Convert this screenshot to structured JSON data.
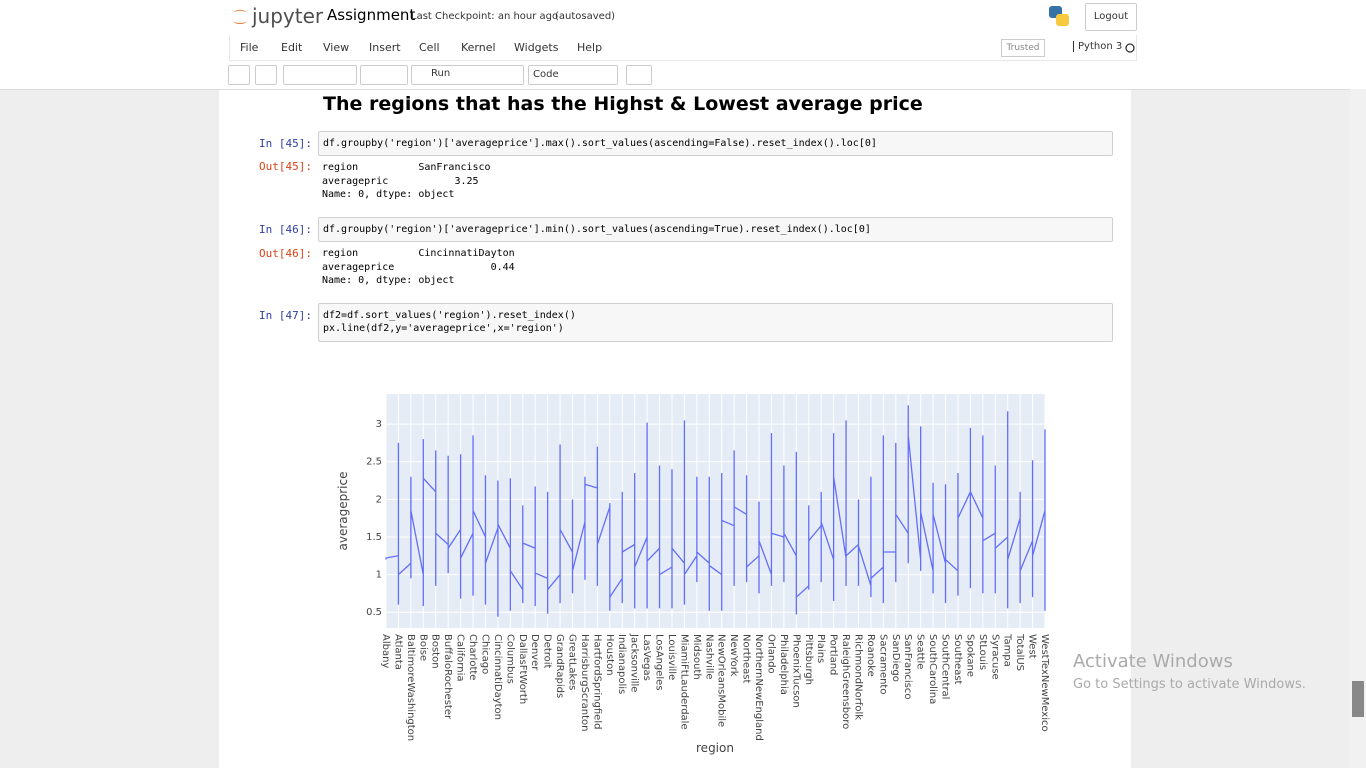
{
  "header": {
    "logo": "jupyter",
    "notebook_name": "Assignment",
    "checkpoint": "Last Checkpoint: an hour ago",
    "autosave": "(autosaved)",
    "logout": "Logout"
  },
  "menu": {
    "items": [
      "File",
      "Edit",
      "View",
      "Insert",
      "Cell",
      "Kernel",
      "Widgets",
      "Help"
    ],
    "trusted": "Trusted",
    "kernel": "Python 3"
  },
  "toolbar": {
    "run": "Run",
    "cell_type": "Code"
  },
  "notebook": {
    "heading": "The regions that has the Highst & Lowest average price",
    "cells": [
      {
        "prompt": "In [45]:",
        "code": "df.groupby('region')['averageprice'].max().sort_values(ascending=False).reset_index().loc[0]",
        "out_prompt": "Out[45]:",
        "output": "region          SanFrancisco\naveragepric           3.25\nName: 0, dtype: object"
      },
      {
        "prompt": "In [46]:",
        "code": "df.groupby('region')['averageprice'].min().sort_values(ascending=True).reset_index().loc[0]",
        "out_prompt": "Out[46]:",
        "output": "region          CincinnatiDayton\naverageprice                0.44\nName: 0, dtype: object"
      },
      {
        "prompt": "In [47]:",
        "code": "df2=df.sort_values('region').reset_index()\npx.line(df2,y='averageprice',x='region')"
      }
    ]
  },
  "chart_data": {
    "type": "line",
    "x_label": "region",
    "y_label": "averageprice",
    "categories": [
      "Albany",
      "Atlanta",
      "BaltimoreWashington",
      "Boise",
      "Boston",
      "BuffaloRochester",
      "California",
      "Charlotte",
      "Chicago",
      "CincinnatiDayton",
      "Columbus",
      "DallasFtWorth",
      "Denver",
      "Detroit",
      "GrandRapids",
      "GreatLakes",
      "HarrisburgScranton",
      "HartfordSpringfield",
      "Houston",
      "Indianapolis",
      "Jacksonville",
      "LasVegas",
      "LosAngeles",
      "Louisville",
      "MiamiFtLauderdale",
      "Midsouth",
      "Nashville",
      "NewOrleansMobile",
      "NewYork",
      "Northeast",
      "NorthernNewEngland",
      "Orlando",
      "Philadelphia",
      "PhoenixTucson",
      "Pittsburgh",
      "Plains",
      "Portland",
      "RaleighGreensboro",
      "RichmondNorfolk",
      "Roanoke",
      "Sacramento",
      "SanDiego",
      "SanFrancisco",
      "Seattle",
      "SouthCarolina",
      "SouthCentral",
      "Southeast",
      "Spokane",
      "StLouis",
      "Syracuse",
      "Tampa",
      "TotalUS",
      "West",
      "WestTexNewMexico"
    ],
    "series": [
      {
        "color": "#636efa",
        "values": [
          [
            1.2,
            1.22,
            1.2,
            1.22
          ],
          [
            1.25,
            2.75,
            0.6,
            1.0
          ],
          [
            1.15,
            2.3,
            0.95,
            1.85
          ],
          [
            1.0,
            2.8,
            0.58,
            2.28
          ],
          [
            2.1,
            2.65,
            0.85,
            1.55
          ],
          [
            1.4,
            2.58,
            1.02,
            1.35
          ],
          [
            1.6,
            2.6,
            0.68,
            1.22
          ],
          [
            1.55,
            2.85,
            0.72,
            1.85
          ],
          [
            1.5,
            2.32,
            0.6,
            1.15
          ],
          [
            1.62,
            2.25,
            0.44,
            1.67
          ],
          [
            1.35,
            2.28,
            0.52,
            1.05
          ],
          [
            0.8,
            1.92,
            0.62,
            1.42
          ],
          [
            1.35,
            2.17,
            0.58,
            1.02
          ],
          [
            0.95,
            2.1,
            0.48,
            0.8
          ],
          [
            1.0,
            2.73,
            0.62,
            1.6
          ],
          [
            1.3,
            2.0,
            0.75,
            1.05
          ],
          [
            1.7,
            2.3,
            0.93,
            2.2
          ],
          [
            2.15,
            2.7,
            0.85,
            1.4
          ],
          [
            1.9,
            1.95,
            0.52,
            0.7
          ],
          [
            0.95,
            2.1,
            0.62,
            1.3
          ],
          [
            1.4,
            2.35,
            0.55,
            1.1
          ],
          [
            1.5,
            3.02,
            0.55,
            1.18
          ],
          [
            1.35,
            2.45,
            0.55,
            1.0
          ],
          [
            1.1,
            2.4,
            0.55,
            1.35
          ],
          [
            1.15,
            3.05,
            0.6,
            1.0
          ],
          [
            1.25,
            2.3,
            0.9,
            1.3
          ],
          [
            1.15,
            2.3,
            0.52,
            1.12
          ],
          [
            1.0,
            2.35,
            0.52,
            1.72
          ],
          [
            1.65,
            2.65,
            0.85,
            1.9
          ],
          [
            1.8,
            2.32,
            0.9,
            1.1
          ],
          [
            1.25,
            1.97,
            0.75,
            1.45
          ],
          [
            1.0,
            2.88,
            0.85,
            1.55
          ],
          [
            1.5,
            2.45,
            0.9,
            1.55
          ],
          [
            1.25,
            2.63,
            0.47,
            0.7
          ],
          [
            0.85,
            1.92,
            0.8,
            1.45
          ],
          [
            1.65,
            2.1,
            0.9,
            1.7
          ],
          [
            1.2,
            2.88,
            0.65,
            2.3
          ],
          [
            1.22,
            3.05,
            0.85,
            1.25
          ],
          [
            1.4,
            2.0,
            0.85,
            1.38
          ],
          [
            0.85,
            2.3,
            0.7,
            0.95
          ],
          [
            1.1,
            2.85,
            0.62,
            1.3
          ],
          [
            1.3,
            2.75,
            0.9,
            1.8
          ],
          [
            1.55,
            3.25,
            1.15,
            2.85
          ],
          [
            1.2,
            2.97,
            1.05,
            1.83
          ],
          [
            1.05,
            2.22,
            0.75,
            1.8
          ],
          [
            1.15,
            2.2,
            0.62,
            1.2
          ],
          [
            1.05,
            2.35,
            0.72,
            1.75
          ],
          [
            2.1,
            2.95,
            0.82,
            2.1
          ],
          [
            1.75,
            2.85,
            0.75,
            1.45
          ],
          [
            1.55,
            2.45,
            0.75,
            1.35
          ],
          [
            1.5,
            3.17,
            0.55,
            1.2
          ],
          [
            1.75,
            2.1,
            0.62,
            1.05
          ],
          [
            1.45,
            2.52,
            0.7,
            1.25
          ],
          [
            1.85,
            2.93,
            0.52,
            1.85
          ]
        ]
      }
    ],
    "ylim": [
      0.29,
      3.4
    ],
    "yticks": [
      0.5,
      1,
      1.5,
      2,
      2.5,
      3
    ],
    "grid": true
  },
  "watermark": {
    "title": "Activate Windows",
    "subtitle": "Go to Settings to activate Windows."
  }
}
